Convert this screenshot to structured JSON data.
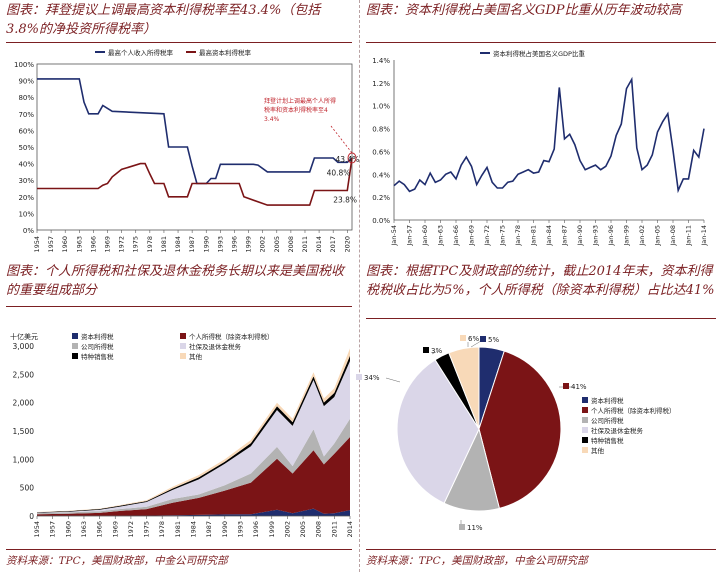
{
  "panels": {
    "p1_title": "图表：拜登提议上调最高资本利得税率至43.4%（包括3.8%的净投资所得税率）",
    "p2_title": "图表：资本利得税占美国名义GDP比重从历年波动较高",
    "p3_title": "图表：个人所得税和社保及退休金税务长期以来是美国税收的重要组成部分",
    "p4_title": "图表：根据TPC及财政部的统计，截止2014年末，资本利得税税收占比为5%，个人所得税（除资本利得税）占比达41%"
  },
  "sources": {
    "left": "资料来源：TPC，美国财政部，中金公司研究部",
    "right": "资料来源：TPC，美国财政部，中金公司研究部"
  },
  "colors": {
    "navy": "#1f2d6e",
    "maroon": "#7b1416",
    "gray": "#b3b3b3",
    "lavender": "#dad6e8",
    "black": "#000000",
    "peach": "#f8d9b8",
    "accent": "#7b1f22"
  },
  "chart_data": [
    {
      "type": "line",
      "id": "rates",
      "x_ticks": [
        "1954",
        "1957",
        "1960",
        "1963",
        "1966",
        "1969",
        "1972",
        "1975",
        "1978",
        "1981",
        "1984",
        "1987",
        "1990",
        "1993",
        "1996",
        "1999",
        "2002",
        "2005",
        "2008",
        "2011",
        "2014",
        "2017",
        "2020"
      ],
      "ylim": [
        0,
        100
      ],
      "y_ticks": [
        "0%",
        "10%",
        "20%",
        "30%",
        "40%",
        "50%",
        "60%",
        "70%",
        "80%",
        "90%",
        "100%"
      ],
      "series": [
        {
          "name": "最高个人收入所得税率",
          "color": "#1f2d6e",
          "x": [
            1954,
            1963,
            1964,
            1965,
            1967,
            1968,
            1970,
            1981,
            1982,
            1986,
            1987,
            1988,
            1990,
            1991,
            1992,
            1993,
            2000,
            2001,
            2003,
            2012,
            2013,
            2017,
            2018,
            2020,
            2021
          ],
          "y": [
            91,
            91,
            77,
            70,
            70,
            75,
            71.5,
            70,
            50,
            50,
            38.5,
            28,
            28,
            31,
            31,
            39.6,
            39.6,
            39.1,
            35,
            35,
            43.4,
            43.4,
            40.8,
            40.8,
            43.4
          ]
        },
        {
          "name": "最高资本利得税率",
          "color": "#7b1416",
          "x": [
            1954,
            1967,
            1968,
            1969,
            1970,
            1972,
            1976,
            1977,
            1978,
            1979,
            1981,
            1982,
            1986,
            1987,
            1988,
            1997,
            1998,
            2003,
            2012,
            2013,
            2020,
            2021
          ],
          "y": [
            25,
            25,
            27,
            28,
            32,
            36.5,
            40,
            40,
            33.8,
            28,
            28,
            20,
            20,
            28,
            28,
            28,
            20,
            15,
            15,
            23.8,
            23.8,
            43.4
          ]
        }
      ],
      "data_labels": [
        "43.4%",
        "40.8%",
        "23.8%"
      ],
      "annotation": "拜登计划上调最高个人所得税率和资本利得税率至43.4%"
    },
    {
      "type": "line",
      "id": "cg_gdp",
      "x_ticks": [
        "Jan-54",
        "Jan-57",
        "Jan-60",
        "Jan-63",
        "Jan-66",
        "Jan-69",
        "Jan-72",
        "Jan-75",
        "Jan-78",
        "Jan-81",
        "Jan-84",
        "Jan-87",
        "Jan-90",
        "Jan-93",
        "Jan-96",
        "Jan-99",
        "Jan-02",
        "Jan-05",
        "Jan-08",
        "Jan-11",
        "Jan-14"
      ],
      "ylim": [
        0,
        1.4
      ],
      "y_ticks": [
        "0.0%",
        "0.2%",
        "0.4%",
        "0.6%",
        "0.8%",
        "1.0%",
        "1.2%",
        "1.4%"
      ],
      "series": [
        {
          "name": "资本利得税占美国名义GDP比重",
          "color": "#1f2d6e",
          "x": [
            1954,
            1955,
            1956,
            1957,
            1958,
            1959,
            1960,
            1961,
            1962,
            1963,
            1964,
            1965,
            1966,
            1967,
            1968,
            1969,
            1970,
            1971,
            1972,
            1973,
            1974,
            1975,
            1976,
            1977,
            1978,
            1979,
            1980,
            1981,
            1982,
            1983,
            1984,
            1985,
            1986,
            1987,
            1988,
            1989,
            1990,
            1991,
            1992,
            1993,
            1994,
            1995,
            1996,
            1997,
            1998,
            1999,
            2000,
            2001,
            2002,
            2003,
            2004,
            2005,
            2006,
            2007,
            2008,
            2009,
            2010,
            2011,
            2012,
            2013,
            2014
          ],
          "y": [
            0.3,
            0.34,
            0.31,
            0.25,
            0.27,
            0.35,
            0.31,
            0.41,
            0.33,
            0.35,
            0.4,
            0.42,
            0.36,
            0.48,
            0.55,
            0.47,
            0.31,
            0.39,
            0.46,
            0.33,
            0.28,
            0.28,
            0.33,
            0.34,
            0.4,
            0.42,
            0.44,
            0.41,
            0.42,
            0.52,
            0.51,
            0.62,
            1.16,
            0.71,
            0.75,
            0.66,
            0.52,
            0.44,
            0.46,
            0.48,
            0.44,
            0.47,
            0.56,
            0.74,
            0.84,
            1.15,
            1.23,
            0.63,
            0.44,
            0.48,
            0.57,
            0.77,
            0.86,
            0.93,
            0.61,
            0.26,
            0.36,
            0.36,
            0.61,
            0.55,
            0.8
          ]
        }
      ]
    },
    {
      "type": "area",
      "id": "revenue",
      "unit": "十亿美元",
      "ylim": [
        0,
        3000
      ],
      "y_ticks": [
        "0",
        "500",
        "1,000",
        "1,500",
        "2,000",
        "2,500",
        "3,000"
      ],
      "x_ticks": [
        "1954",
        "1957",
        "1960",
        "1963",
        "1966",
        "1969",
        "1972",
        "1975",
        "1978",
        "1981",
        "1984",
        "1987",
        "1990",
        "1993",
        "1996",
        "1999",
        "2002",
        "2005",
        "2008",
        "2011",
        "2014"
      ],
      "years": [
        1954,
        1960,
        1966,
        1970,
        1975,
        1980,
        1985,
        1990,
        1995,
        2000,
        2003,
        2007,
        2009,
        2011,
        2014
      ],
      "series": [
        {
          "name": "资本利得税",
          "color": "#1f2d6e",
          "values": [
            2,
            3,
            4,
            5,
            7,
            15,
            20,
            28,
            30,
            110,
            50,
            130,
            40,
            50,
            105
          ]
        },
        {
          "name": "个人所得税（除资本利得税）",
          "color": "#7b1416",
          "values": [
            28,
            38,
            50,
            85,
            115,
            220,
            300,
            420,
            560,
            900,
            700,
            1030,
            870,
            1050,
            1290
          ]
        },
        {
          "name": "公司所得税",
          "color": "#b3b3b3",
          "values": [
            21,
            22,
            30,
            33,
            40,
            65,
            60,
            95,
            160,
            210,
            130,
            370,
            140,
            180,
            320
          ]
        },
        {
          "name": "社保及退休金税务",
          "color": "#dad6e8",
          "values": [
            5,
            12,
            26,
            45,
            85,
            160,
            265,
            380,
            480,
            650,
            710,
            870,
            890,
            820,
            1020
          ]
        },
        {
          "name": "特种销售税",
          "color": "#000000",
          "values": [
            10,
            11,
            13,
            16,
            16,
            25,
            36,
            35,
            56,
            68,
            67,
            65,
            63,
            73,
            93
          ]
        },
        {
          "name": "其他",
          "color": "#f8d9b8",
          "values": [
            4,
            5,
            8,
            10,
            15,
            30,
            40,
            45,
            55,
            60,
            60,
            70,
            70,
            80,
            130
          ]
        }
      ]
    },
    {
      "type": "pie",
      "id": "share_2014",
      "slices": [
        {
          "name": "资本利得税",
          "value": 5,
          "color": "#1f2d6e",
          "label": "5%"
        },
        {
          "name": "个人所得税（除资本利得税）",
          "value": 41,
          "color": "#7b1416",
          "label": "41%"
        },
        {
          "name": "公司所得税",
          "value": 11,
          "color": "#b3b3b3",
          "label": "11%"
        },
        {
          "name": "社保及退休金税务",
          "value": 34,
          "color": "#dad6e8",
          "label": "34%"
        },
        {
          "name": "特种销售税",
          "value": 3,
          "color": "#000000",
          "label": "3%"
        },
        {
          "name": "其他",
          "value": 6,
          "color": "#f8d9b8",
          "label": "6%"
        }
      ]
    }
  ]
}
